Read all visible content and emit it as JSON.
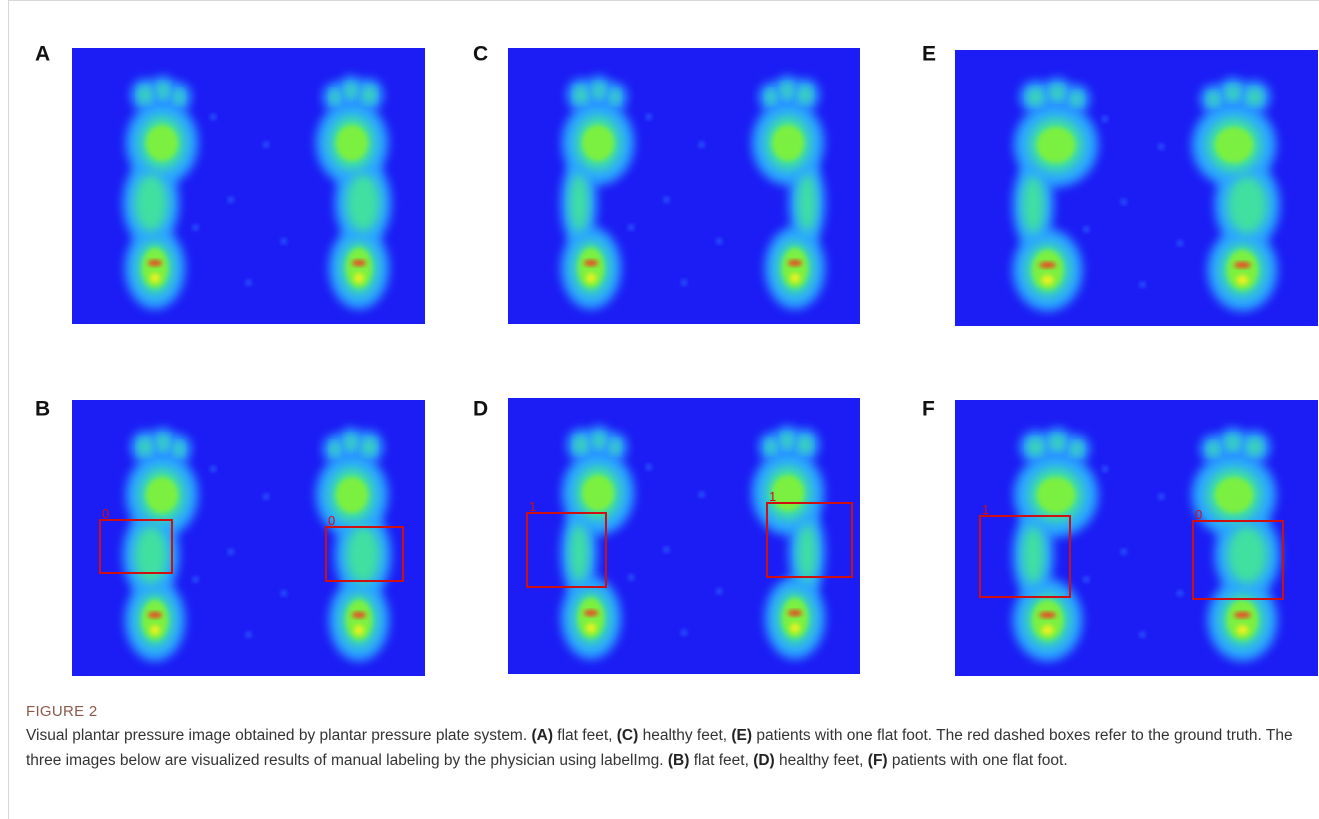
{
  "figure": {
    "panels": [
      {
        "label": "A"
      },
      {
        "label": "C"
      },
      {
        "label": "E"
      },
      {
        "label": "B",
        "box_labels": [
          "0",
          "0"
        ]
      },
      {
        "label": "D",
        "box_labels": [
          "1",
          "1"
        ]
      },
      {
        "label": "F",
        "box_labels": [
          "1",
          "0"
        ]
      }
    ],
    "caption": {
      "figure_label": "FIGURE 2",
      "parts": [
        "Visual plantar pressure image obtained by plantar pressure plate system. ",
        "(A)",
        " flat feet, ",
        "(C)",
        " healthy feet, ",
        "(E)",
        " patients with one flat foot. The red dashed boxes refer to the ground truth. The three images below are visualized results of manual labeling by the physician using labelImg. ",
        "(B)",
        " flat feet, ",
        "(D)",
        " healthy feet, ",
        "(F)",
        " patients with one flat foot."
      ]
    }
  }
}
